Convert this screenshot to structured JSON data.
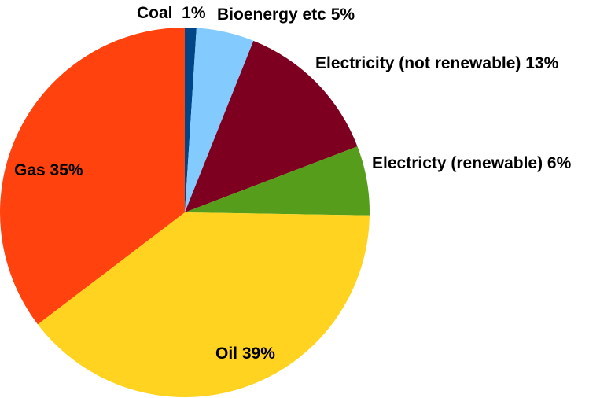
{
  "chart_data": {
    "type": "pie",
    "title": "",
    "legend": "none",
    "slices": [
      {
        "name": "Coal",
        "value": 1,
        "label": "Coal  1%",
        "color": "#004586"
      },
      {
        "name": "Bioenergy etc",
        "value": 5,
        "label": "Bioenergy etc 5%",
        "color": "#83caff"
      },
      {
        "name": "Electricity (not renewable)",
        "value": 13,
        "label": "Electricity (not renewable) 13%",
        "color": "#7e0021"
      },
      {
        "name": "Electricty (renewable)",
        "value": 6,
        "label": "Electricty (renewable) 6%",
        "color": "#579d1c"
      },
      {
        "name": "Oil",
        "value": 39,
        "label": "Oil 39%",
        "color": "#ffd320"
      },
      {
        "name": "Gas",
        "value": 35,
        "label": "Gas 35%",
        "color": "#ff420e"
      }
    ]
  }
}
